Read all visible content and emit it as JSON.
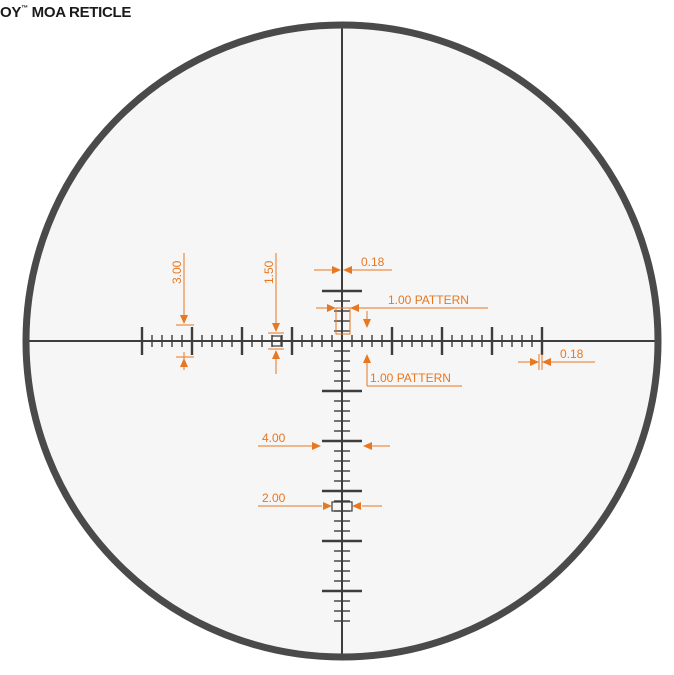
{
  "title": {
    "prefix": "OY",
    "mark": "™",
    "suffix": " MOA RETICLE"
  },
  "colors": {
    "reticle": "#3d3d3d",
    "scope_ring": "#4a4a4a",
    "field": "#f6f6f6",
    "dimension": "#e87722"
  },
  "annotations": {
    "thick_post_height": "3.00",
    "box_height": "1.50",
    "line_width_top": "0.18",
    "line_width_right": "0.18",
    "pattern_top": "1.00 PATTERN",
    "pattern_bottom": "1.00 PATTERN",
    "bar_width": "4.00",
    "box_width": "2.00"
  }
}
